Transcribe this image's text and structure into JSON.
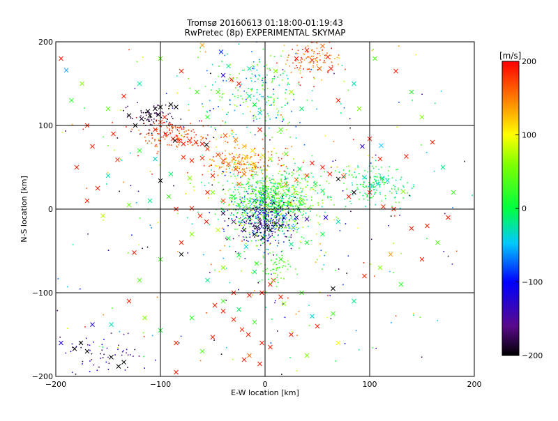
{
  "chart_data": {
    "type": "scatter",
    "title": "Tromsø 20160613 01:18:00-01:19:43",
    "subtitle": "RwPretec (8p) EXPERIMENTAL SKYMAP",
    "xlabel": "E-W location [km]",
    "ylabel": "N-S location [km]",
    "xlim": [
      -200,
      200
    ],
    "ylim": [
      -200,
      200
    ],
    "xticks": [
      -200,
      -100,
      0,
      100,
      200
    ],
    "yticks": [
      -200,
      -100,
      0,
      100,
      200
    ],
    "grid": true,
    "colorbar": {
      "title": "[m/s]",
      "min": -200,
      "max": 200,
      "ticks": [
        -200,
        -100,
        0,
        100,
        200
      ],
      "colormap": "black-purple-blue-cyan-green-yellow-orange-red"
    },
    "series": [
      {
        "marker": "x",
        "points": [
          [
            -190,
            166,
            -60
          ],
          [
            -112,
            117,
            -200
          ],
          [
            -100,
            122,
            -200
          ],
          [
            -102,
            113,
            -200
          ],
          [
            -110,
            112,
            -200
          ],
          [
            -118,
            108,
            -190
          ],
          [
            -124,
            100,
            -200
          ],
          [
            -130,
            112,
            -200
          ],
          [
            -90,
            125,
            -200
          ],
          [
            -85,
            122,
            -200
          ],
          [
            -105,
            95,
            190
          ],
          [
            -95,
            90,
            195
          ],
          [
            -88,
            84,
            195
          ],
          [
            -82,
            82,
            190
          ],
          [
            -78,
            78,
            195
          ],
          [
            -72,
            82,
            185
          ],
          [
            -66,
            80,
            190
          ],
          [
            -60,
            78,
            195
          ],
          [
            -55,
            72,
            180
          ],
          [
            -45,
            65,
            175
          ],
          [
            -40,
            58,
            165
          ],
          [
            -35,
            54,
            170
          ],
          [
            -28,
            48,
            180
          ],
          [
            -20,
            42,
            160
          ],
          [
            -30,
            60,
            150
          ],
          [
            -24,
            56,
            140
          ],
          [
            -18,
            62,
            130
          ],
          [
            -10,
            54,
            120
          ],
          [
            -141,
            59,
            190
          ],
          [
            -100,
            34,
            -200
          ],
          [
            -86,
            82,
            -200
          ],
          [
            -56,
            77,
            -200
          ],
          [
            -50,
            40,
            190
          ],
          [
            -55,
            20,
            190
          ],
          [
            -40,
            10,
            170
          ],
          [
            -25,
            30,
            160
          ],
          [
            -72,
            37,
            60
          ],
          [
            -50,
            20,
            60
          ],
          [
            -40,
            -5,
            -180
          ],
          [
            -30,
            -15,
            -150
          ],
          [
            -20,
            -25,
            -200
          ],
          [
            -10,
            -30,
            -200
          ],
          [
            -2,
            -34,
            -200
          ],
          [
            5,
            -25,
            -200
          ],
          [
            10,
            -18,
            -190
          ],
          [
            15,
            -20,
            -200
          ],
          [
            -5,
            -15,
            -170
          ],
          [
            30,
            -10,
            -150
          ],
          [
            40,
            -12,
            -140
          ],
          [
            58,
            -10,
            -120
          ],
          [
            70,
            36,
            -200
          ],
          [
            85,
            20,
            -200
          ],
          [
            62,
            42,
            190
          ],
          [
            75,
            39,
            190
          ],
          [
            80,
            15,
            190
          ],
          [
            100,
            20,
            190
          ],
          [
            113,
            3,
            180
          ],
          [
            123,
            0,
            190
          ],
          [
            132,
            21,
            60
          ],
          [
            108,
            30,
            -40
          ],
          [
            95,
            38,
            -40
          ],
          [
            112,
            37,
            -30
          ],
          [
            117,
            34,
            -40
          ],
          [
            103,
            28,
            -20
          ],
          [
            -125,
            -52,
            190
          ],
          [
            -80,
            -54,
            -200
          ],
          [
            -70,
            1,
            190
          ],
          [
            -85,
            0,
            190
          ],
          [
            -56,
            -15,
            190
          ],
          [
            -62,
            -8,
            190
          ],
          [
            120,
            -54,
            140
          ],
          [
            155,
            -20,
            190
          ],
          [
            140,
            -23,
            190
          ],
          [
            -48,
            -115,
            190
          ],
          [
            -40,
            -122,
            190
          ],
          [
            -30,
            -132,
            190
          ],
          [
            -22,
            -144,
            190
          ],
          [
            -16,
            -150,
            190
          ],
          [
            -50,
            -153,
            190
          ],
          [
            -20,
            -180,
            190
          ],
          [
            -5,
            -185,
            190
          ],
          [
            -3,
            -160,
            190
          ],
          [
            5,
            -165,
            190
          ],
          [
            -15,
            -175,
            160
          ],
          [
            -85,
            -195,
            190
          ],
          [
            35,
            -100,
            30
          ],
          [
            70,
            -160,
            100
          ],
          [
            18,
            -113,
            60
          ],
          [
            5,
            -90,
            190
          ],
          [
            15,
            -105,
            190
          ],
          [
            8,
            -85,
            170
          ],
          [
            -40,
            -110,
            30
          ],
          [
            -30,
            -100,
            190
          ],
          [
            -15,
            -103,
            190
          ],
          [
            -3,
            -100,
            190
          ],
          [
            45,
            -128,
            -40
          ],
          [
            65,
            -95,
            -200
          ],
          [
            -140,
            -188,
            -200
          ],
          [
            -135,
            -183,
            -200
          ],
          [
            -147,
            -177,
            -200
          ],
          [
            -170,
            -170,
            -200
          ],
          [
            -182,
            -167,
            -200
          ],
          [
            -176,
            -160,
            -200
          ],
          [
            -195,
            -160,
            -120
          ],
          [
            -165,
            -138,
            -120
          ],
          [
            -147,
            -138,
            -30
          ],
          [
            -60,
            196,
            140
          ],
          [
            -40,
            160,
            -120
          ],
          [
            -32,
            155,
            190
          ],
          [
            -25,
            150,
            190
          ],
          [
            -45,
            140,
            40
          ],
          [
            -15,
            168,
            -20
          ],
          [
            -35,
            171,
            -20
          ],
          [
            -42,
            188,
            -90
          ],
          [
            10,
            165,
            60
          ],
          [
            -15,
            135,
            -20
          ],
          [
            -10,
            125,
            0
          ],
          [
            -5,
            115,
            -40
          ],
          [
            30,
            180,
            190
          ],
          [
            40,
            190,
            190
          ],
          [
            45,
            178,
            190
          ],
          [
            55,
            195,
            160
          ],
          [
            60,
            182,
            190
          ],
          [
            63,
            168,
            190
          ],
          [
            52,
            168,
            170
          ],
          [
            -105,
            120,
            -200
          ],
          [
            -96,
            110,
            190
          ],
          [
            -100,
            104,
            180
          ],
          [
            100,
            84,
            190
          ],
          [
            111,
            76,
            -50
          ],
          [
            135,
            63,
            190
          ],
          [
            93,
            75,
            -120
          ],
          [
            110,
            60,
            190
          ],
          [
            45,
            55,
            190
          ],
          [
            55,
            50,
            190
          ],
          [
            40,
            40,
            180
          ],
          [
            30,
            35,
            160
          ],
          [
            20,
            30,
            150
          ],
          [
            -10,
            10,
            -100
          ],
          [
            -2,
            18,
            -80
          ],
          [
            8,
            8,
            -60
          ],
          [
            15,
            3,
            30
          ],
          [
            22,
            6,
            60
          ],
          [
            35,
            10,
            20
          ],
          [
            -5,
            -5,
            -120
          ],
          [
            0,
            -10,
            -140
          ],
          [
            -15,
            -10,
            -180
          ],
          [
            -8,
            -22,
            -200
          ],
          [
            2,
            -20,
            -190
          ],
          [
            12,
            -6,
            -110
          ],
          [
            18,
            -10,
            -90
          ],
          [
            27,
            -22,
            -60
          ],
          [
            -60,
            61,
            190
          ],
          [
            -70,
            58,
            190
          ],
          [
            -78,
            62,
            185
          ],
          [
            -38,
            88,
            170
          ],
          [
            -28,
            83,
            150
          ],
          [
            -20,
            75,
            130
          ],
          [
            -12,
            70,
            110
          ],
          [
            -2,
            64,
            90
          ],
          [
            5,
            60,
            70
          ],
          [
            20,
            66,
            40
          ],
          [
            -25,
            5,
            30
          ],
          [
            -30,
            15,
            10
          ],
          [
            -45,
            -25,
            80
          ],
          [
            -35,
            -35,
            10
          ],
          [
            -18,
            -45,
            -40
          ],
          [
            -25,
            -55,
            0
          ],
          [
            -8,
            -65,
            20
          ],
          [
            -10,
            -75,
            -10
          ],
          [
            15,
            -60,
            30
          ],
          [
            25,
            -42,
            -20
          ],
          [
            40,
            -40,
            10
          ],
          [
            55,
            -30,
            0
          ],
          [
            70,
            -15,
            -30
          ],
          [
            48,
            30,
            20
          ],
          [
            55,
            22,
            -10
          ],
          [
            33,
            48,
            0
          ],
          [
            -92,
            15,
            30
          ],
          [
            -110,
            10,
            -20
          ],
          [
            -130,
            5,
            50
          ],
          [
            -155,
            -8,
            80
          ],
          [
            -150,
            40,
            -30
          ],
          [
            -160,
            25,
            190
          ],
          [
            -170,
            10,
            190
          ],
          [
            -180,
            50,
            190
          ],
          [
            -165,
            75,
            190
          ],
          [
            -145,
            90,
            190
          ],
          [
            -120,
            70,
            20
          ],
          [
            -105,
            60,
            -40
          ],
          [
            -90,
            42,
            -10
          ],
          [
            -70,
            -30,
            60
          ],
          [
            -80,
            -40,
            190
          ],
          [
            -100,
            -60,
            30
          ],
          [
            -120,
            -85,
            40
          ],
          [
            -130,
            -110,
            190
          ],
          [
            -115,
            -130,
            60
          ],
          [
            -100,
            -145,
            10
          ],
          [
            -85,
            -160,
            190
          ],
          [
            -60,
            -170,
            40
          ],
          [
            -70,
            -130,
            20
          ],
          [
            -55,
            -85,
            -20
          ],
          [
            -40,
            -70,
            60
          ],
          [
            -25,
            -120,
            -10
          ],
          [
            -10,
            -135,
            30
          ],
          [
            25,
            -150,
            190
          ],
          [
            40,
            -175,
            60
          ],
          [
            50,
            -140,
            190
          ],
          [
            65,
            -125,
            30
          ],
          [
            85,
            -110,
            -20
          ],
          [
            95,
            -80,
            190
          ],
          [
            110,
            -70,
            60
          ],
          [
            130,
            -90,
            20
          ],
          [
            150,
            -60,
            190
          ],
          [
            165,
            -40,
            40
          ],
          [
            175,
            -10,
            190
          ],
          [
            180,
            20,
            30
          ],
          [
            170,
            50,
            -20
          ],
          [
            160,
            80,
            190
          ],
          [
            150,
            110,
            60
          ],
          [
            140,
            140,
            20
          ],
          [
            125,
            165,
            190
          ],
          [
            105,
            180,
            40
          ],
          [
            85,
            150,
            -30
          ],
          [
            90,
            120,
            60
          ],
          [
            70,
            130,
            190
          ],
          [
            25,
            140,
            80
          ],
          [
            35,
            120,
            -10
          ],
          [
            15,
            95,
            40
          ],
          [
            -5,
            95,
            190
          ],
          [
            -55,
            110,
            20
          ],
          [
            -65,
            140,
            30
          ],
          [
            -80,
            165,
            190
          ],
          [
            -100,
            180,
            40
          ],
          [
            -120,
            150,
            -20
          ],
          [
            -135,
            135,
            190
          ],
          [
            -150,
            120,
            40
          ],
          [
            -170,
            100,
            190
          ],
          [
            -185,
            130,
            20
          ],
          [
            -175,
            150,
            60
          ],
          [
            -195,
            180,
            190
          ]
        ]
      },
      {
        "marker": "dot",
        "points": []
      }
    ]
  }
}
